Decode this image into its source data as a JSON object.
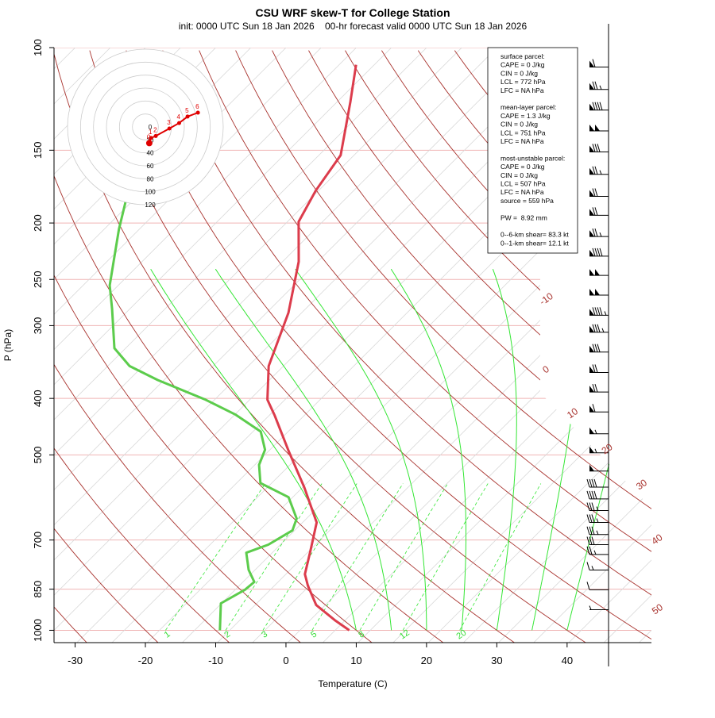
{
  "chart_data": {
    "type": "skewt",
    "title": "CSU WRF skew-T for College Station",
    "subtitle": "init: 0000 UTC Sun 18 Jan 2026    00-hr forecast valid 0000 UTC Sun 18 Jan 2026",
    "xlabel": "Temperature (C)",
    "ylabel": "P (hPa)",
    "xlim": [
      -33,
      52
    ],
    "xticks": [
      -30,
      -20,
      -10,
      0,
      10,
      20,
      30,
      40
    ],
    "ylim": [
      1050,
      100
    ],
    "yticks": [
      1000,
      850,
      700,
      500,
      400,
      300,
      250,
      200,
      150,
      100
    ],
    "log_y": true,
    "series": [
      {
        "color": "#dc3c4c",
        "pressure": [
          1000,
          963,
          905,
          839,
          801,
          729,
          653,
          568,
          493,
          428,
          402,
          352,
          285,
          233,
          199,
          176,
          153,
          124,
          107
        ],
        "values": [
          9.0,
          5.7,
          0.7,
          -3.2,
          -5.3,
          -7.9,
          -11.0,
          -17.8,
          -25.1,
          -32.2,
          -35.5,
          -40.1,
          -44.9,
          -50.7,
          -56.4,
          -58.4,
          -59.9,
          -66.1,
          -70.6
        ]
      },
      {
        "color": "#5ccc4c",
        "pressure": [
          1000,
          899,
          852,
          826,
          788,
          736,
          713,
          674,
          643,
          591,
          559,
          520,
          490,
          456,
          426,
          402,
          372,
          352,
          328,
          281,
          256,
          225,
          205,
          181
        ],
        "values": [
          -9.4,
          -13.1,
          -11.6,
          -11.4,
          -13.9,
          -16.7,
          -14.7,
          -13.3,
          -14.4,
          -18.6,
          -24.6,
          -27.4,
          -28.7,
          -31.9,
          -38.0,
          -44.3,
          -53.9,
          -59.9,
          -64.6,
          -70.5,
          -74.2,
          -78.1,
          -80.9,
          -84.3
        ]
      }
    ],
    "isotherm_labels": [
      -10,
      0,
      10,
      20,
      30,
      40,
      50
    ],
    "mixing_ratio_labels": [
      1,
      2,
      3,
      5,
      8,
      12,
      20
    ],
    "wind": {
      "pressure": [
        108,
        118,
        128,
        139,
        151,
        165,
        180,
        194,
        211,
        228,
        246,
        266,
        288,
        308,
        333,
        361,
        390,
        422,
        460,
        496,
        533,
        568,
        595,
        623,
        653,
        685,
        713,
        741,
        788,
        852,
        922
      ],
      "speed": [
        60,
        75,
        90,
        100,
        80,
        75,
        70,
        70,
        75,
        90,
        100,
        100,
        95,
        85,
        80,
        70,
        70,
        60,
        55,
        55,
        50,
        40,
        40,
        35,
        35,
        35,
        30,
        25,
        15,
        10,
        5
      ]
    },
    "hodograph": {
      "rings": [
        0,
        20,
        40,
        60,
        80,
        100,
        120
      ],
      "km": [
        0,
        1,
        2,
        3,
        4,
        5,
        6
      ],
      "u": [
        6,
        8.6,
        16,
        37,
        52,
        65,
        81
      ],
      "v": [
        -25,
        -17,
        -14,
        -2.5,
        6,
        16,
        22
      ],
      "color": "#e00000"
    },
    "info": [
      [
        "surface parcel:",
        "CAPE = 0 J/kg",
        "CIN = 0 J/kg",
        "LCL = 772 hPa",
        "LFC = NA hPa"
      ],
      [
        "mean-layer parcel:",
        "CAPE = 1.3 J/kg",
        "CIN = 0 J/kg",
        "LCL = 751 hPa",
        "LFC = NA hPa"
      ],
      [
        "most-unstable parcel:",
        "CAPE = 0 J/kg",
        "CIN = 0 J/kg",
        "LCL = 507 hPa",
        "LFC = NA hPa",
        "source = 559 hPa"
      ],
      [
        "PW =  8.92 mm"
      ],
      [
        "0--6-km shear= 83.3 kt",
        "0--1-km shear= 12.1 kt"
      ]
    ]
  }
}
